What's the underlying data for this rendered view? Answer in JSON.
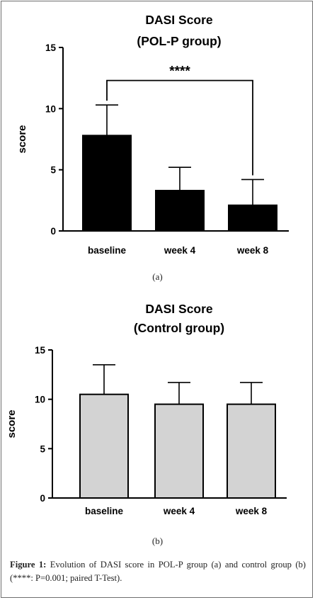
{
  "chart_data": [
    {
      "type": "bar",
      "title": "DASI Score",
      "subtitle": "(POL-P group)",
      "ylabel": "score",
      "xlabel": "",
      "categories": [
        "baseline",
        "week 4",
        "week 8"
      ],
      "values": [
        7.8,
        3.3,
        2.1
      ],
      "error_upper": [
        10.3,
        5.2,
        4.2
      ],
      "ylim": [
        0,
        15
      ],
      "yticks": [
        0,
        5,
        10,
        15
      ],
      "bar_color": "#000000",
      "significance": {
        "from": 0,
        "to": 2,
        "label": "****",
        "level": 12.3
      },
      "grid": false,
      "panel_label": "(a)"
    },
    {
      "type": "bar",
      "title": "DASI Score",
      "subtitle": "(Control group)",
      "ylabel": "score",
      "xlabel": "",
      "categories": [
        "baseline",
        "week 4",
        "week 8"
      ],
      "values": [
        10.5,
        9.5,
        9.5
      ],
      "error_upper": [
        13.5,
        11.7,
        11.7
      ],
      "ylim": [
        0,
        15
      ],
      "yticks": [
        0,
        5,
        10,
        15
      ],
      "bar_color": "#d3d3d3",
      "grid": false,
      "panel_label": "(b)"
    }
  ],
  "caption": {
    "label": "Figure 1:",
    "text": "Evolution of DASI score in POL-P group (a) and control group (b) (****: P=0.001; paired T-Test)."
  }
}
